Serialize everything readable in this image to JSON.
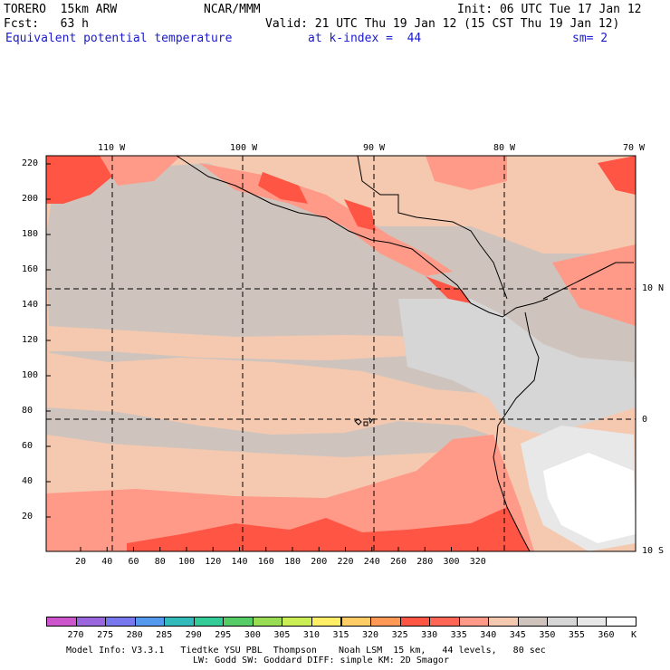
{
  "header": {
    "model": "TORERO  15km ARW",
    "org": "NCAR/MMM",
    "init": "Init: 06 UTC Tue 17 Jan 12",
    "fcst": "Fcst:   63 h",
    "valid": "Valid: 21 UTC Thu 19 Jan 12 (15 CST Thu 19 Jan 12)",
    "field": "Equivalent potential temperature",
    "level": "at k-index =  44",
    "smooth": "sm= 2"
  },
  "map": {
    "top_lon_labels": [
      "110 W",
      "100 W",
      "90 W",
      "80 W",
      "70 W"
    ],
    "right_lat_labels": [
      "10 N",
      "0",
      "10 S"
    ],
    "y_ticks": [
      "220",
      "200",
      "180",
      "160",
      "140",
      "120",
      "100",
      "80",
      "60",
      "40",
      "20"
    ],
    "x_ticks": [
      "20",
      "40",
      "60",
      "80",
      "100",
      "120",
      "140",
      "160",
      "180",
      "200",
      "220",
      "240",
      "260",
      "280",
      "300",
      "320"
    ]
  },
  "colorbar": {
    "levels": [
      "270",
      "275",
      "280",
      "285",
      "290",
      "295",
      "300",
      "305",
      "310",
      "315",
      "320",
      "325",
      "330",
      "335",
      "340",
      "345",
      "350",
      "355",
      "360"
    ],
    "unit": "K",
    "colors": [
      "#cc55cc",
      "#9966dd",
      "#7777ee",
      "#5599ee",
      "#33bbbb",
      "#33cc99",
      "#55cc66",
      "#99dd55",
      "#ccee55",
      "#ffee66",
      "#ffcc66",
      "#ff9955",
      "#ff5544",
      "#ff6655",
      "#ff9988",
      "#f5c9b0",
      "#cfc4bd",
      "#d6d6d6",
      "#e8e8e8",
      "#ffffff"
    ]
  },
  "footer": {
    "line1": "Model Info: V3.3.1   Tiedtke YSU PBL  Thompson    Noah LSM  15 km,   44 levels,   80 sec",
    "line2": "LW: Godd SW: Goddard DIFF: simple KM: 2D Smagor"
  }
}
